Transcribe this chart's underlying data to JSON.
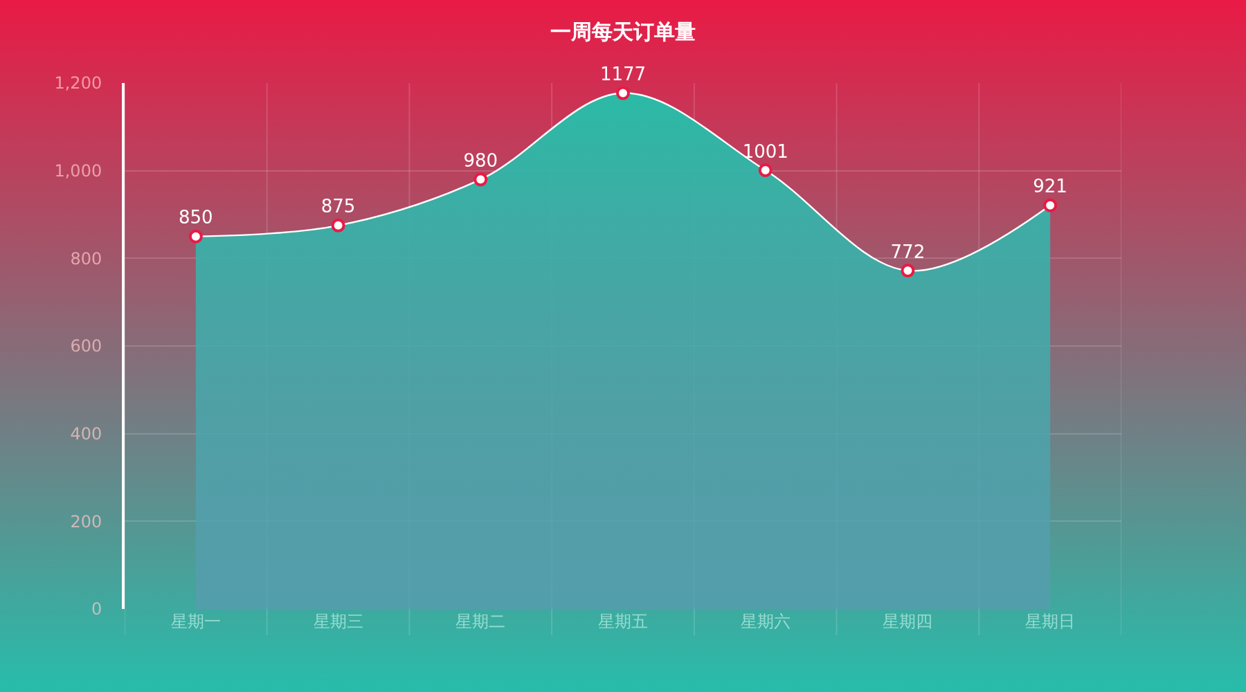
{
  "chart_data": {
    "type": "area",
    "title": "一周每天订单量",
    "categories": [
      "星期一",
      "星期三",
      "星期二",
      "星期五",
      "星期六",
      "星期四",
      "星期日"
    ],
    "series": [
      {
        "color": "#2bbaa6",
        "values": [
          850,
          875,
          980,
          1177,
          1001,
          772,
          921
        ]
      }
    ],
    "ylim": [
      0,
      1200
    ],
    "yticks": [
      0,
      200,
      400,
      600,
      800,
      {
        "value": 1000,
        "label": "1,000"
      },
      {
        "value": 1200,
        "label": "1,200"
      }
    ],
    "grid": true,
    "marker": "circle",
    "line_style": "solid",
    "data_labels": true
  }
}
